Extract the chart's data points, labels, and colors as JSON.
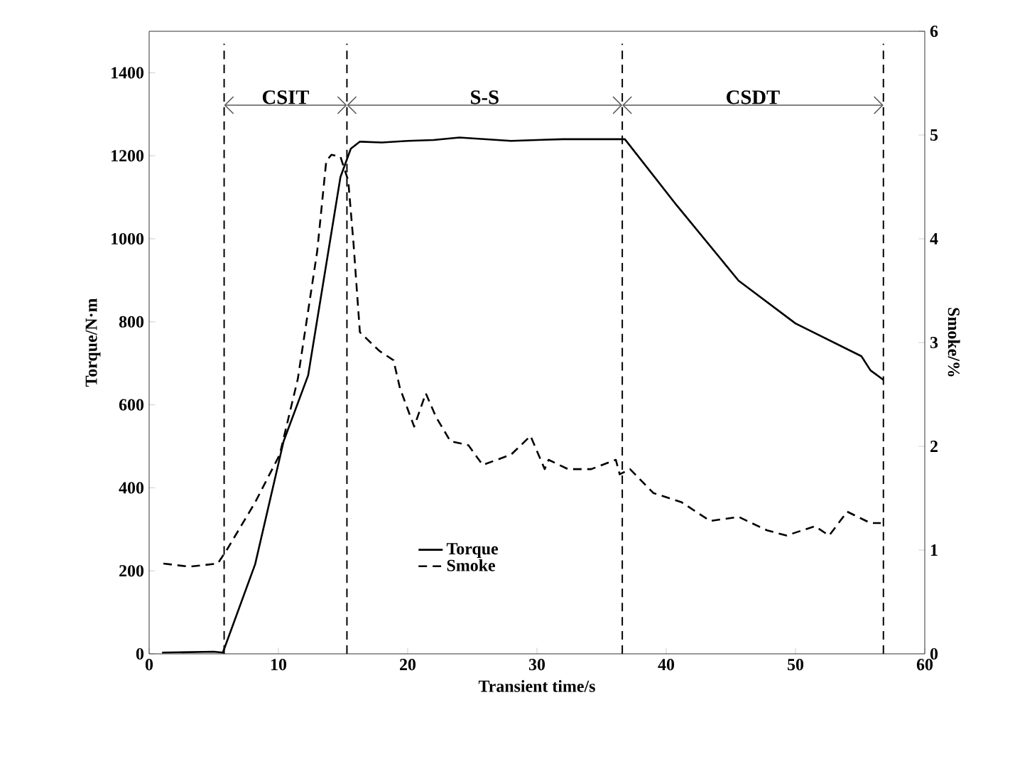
{
  "chart_data": {
    "type": "line",
    "xlabel": "Transient time/s",
    "ylabel": "Torque/N·m",
    "y2label": "Smoke/%",
    "xlim": [
      0,
      60
    ],
    "xticks": [
      0,
      10,
      20,
      30,
      40,
      50,
      60
    ],
    "ylim": [
      0,
      1500
    ],
    "yticks": [
      0,
      200,
      400,
      600,
      800,
      1000,
      1200,
      1400
    ],
    "y2lim": [
      0,
      6
    ],
    "y2ticks": [
      0,
      1,
      2,
      3,
      4,
      5,
      6
    ],
    "series": [
      {
        "name": "Torque",
        "color": "#000000",
        "line_style": "solid",
        "x": [
          1,
          3,
          5,
          5.7,
          8.2,
          10.4,
          12.3,
          14.8,
          15.6,
          16.3,
          18,
          20,
          22,
          24,
          26,
          28,
          30,
          32,
          34,
          36.8,
          40.8,
          45.6,
          50.0,
          55.1,
          55.8,
          56.8
        ],
        "values": [
          3,
          4,
          5,
          3,
          216,
          512,
          671,
          1149,
          1217,
          1234,
          1232,
          1236,
          1238,
          1244,
          1240,
          1236,
          1238,
          1240,
          1240,
          1240,
          1081,
          899,
          796,
          717,
          683,
          660
        ]
      },
      {
        "name": "Smoke",
        "color": "#000000",
        "line_style": "dashed",
        "axis": "y2",
        "x": [
          1.1,
          3.1,
          5.3,
          6.0,
          8.2,
          10.1,
          11.5,
          13.0,
          13.7,
          14.1,
          14.8,
          15.4,
          15.8,
          16.3,
          17.8,
          18.9,
          19.4,
          20.5,
          21.4,
          22.2,
          23.3,
          24.7,
          25.8,
          28.0,
          29.5,
          30.6,
          30.9,
          32.4,
          34.2,
          36.1,
          36.4,
          37.2,
          39.0,
          41.2,
          43.4,
          45.6,
          47.8,
          49.3,
          51.5,
          52.6,
          54.0,
          55.8,
          56.6
        ],
        "values": [
          0.87,
          0.84,
          0.87,
          1.0,
          1.46,
          1.92,
          2.65,
          3.88,
          4.75,
          4.81,
          4.79,
          4.56,
          3.97,
          3.1,
          2.92,
          2.83,
          2.56,
          2.19,
          2.51,
          2.28,
          2.05,
          2.01,
          1.82,
          1.92,
          2.1,
          1.78,
          1.87,
          1.78,
          1.78,
          1.87,
          1.73,
          1.78,
          1.55,
          1.46,
          1.28,
          1.32,
          1.19,
          1.14,
          1.23,
          1.14,
          1.37,
          1.26,
          1.26
        ]
      }
    ],
    "ref_lines": [
      {
        "axis": "x",
        "value": 5.8,
        "line_style": "dashed"
      },
      {
        "axis": "x",
        "value": 15.3,
        "line_style": "dashed"
      },
      {
        "axis": "x",
        "value": 36.6,
        "line_style": "dashed"
      },
      {
        "axis": "x",
        "value": 56.8,
        "line_style": "dashed"
      }
    ],
    "annotations": [
      "CSIT",
      "S-S",
      "CSDT"
    ],
    "legend": "bottom",
    "grid": false
  }
}
